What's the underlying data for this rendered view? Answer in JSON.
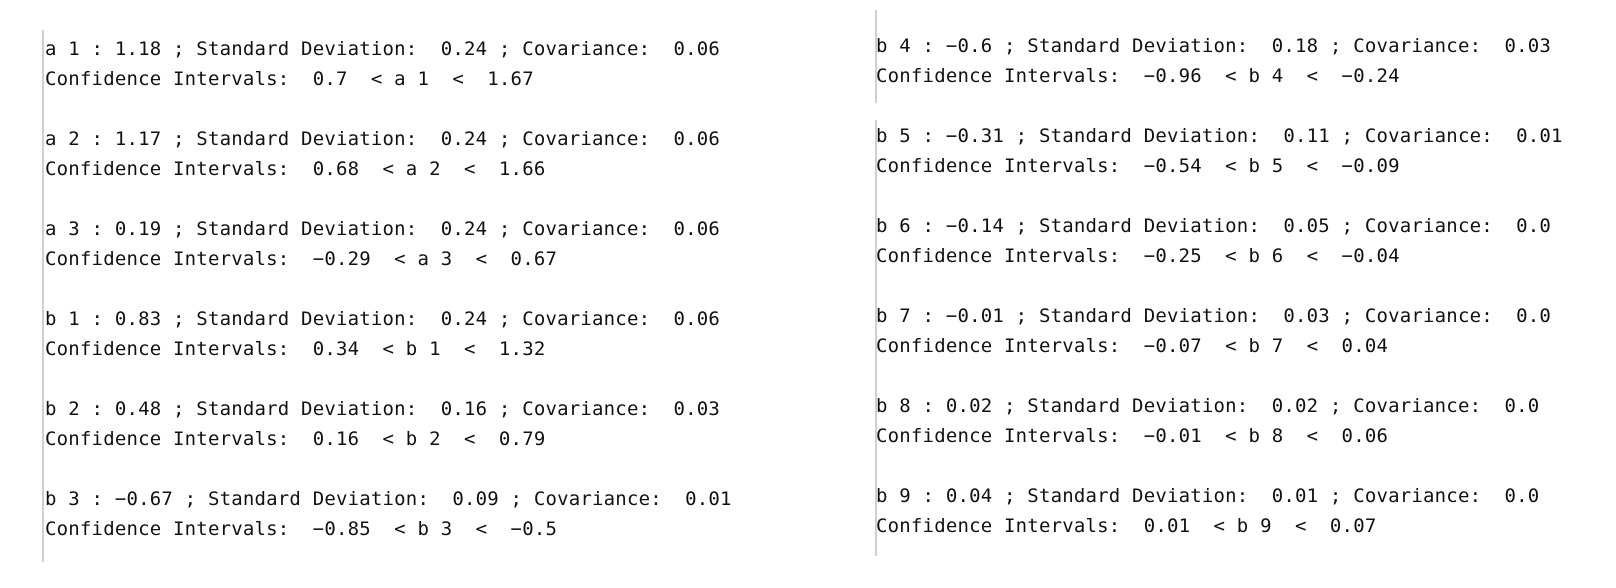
{
  "left_panel": {
    "entries": [
      {
        "line1": "a 1 : 1.18 ; Standard Deviation:  0.24 ; Covariance:  0.06",
        "line2": "Confidence Intervals:  0.7  < a 1  <  1.67"
      },
      {
        "line1": "a 2 : 1.17 ; Standard Deviation:  0.24 ; Covariance:  0.06",
        "line2": "Confidence Intervals:  0.68  < a 2  <  1.66"
      },
      {
        "line1": "a 3 : 0.19 ; Standard Deviation:  0.24 ; Covariance:  0.06",
        "line2": "Confidence Intervals:  −0.29  < a 3  <  0.67"
      },
      {
        "line1": "b 1 : 0.83 ; Standard Deviation:  0.24 ; Covariance:  0.06",
        "line2": "Confidence Intervals:  0.34  < b 1  <  1.32"
      },
      {
        "line1": "b 2 : 0.48 ; Standard Deviation:  0.16 ; Covariance:  0.03",
        "line2": "Confidence Intervals:  0.16  < b 2  <  0.79"
      },
      {
        "line1": "b 3 : −0.67 ; Standard Deviation:  0.09 ; Covariance:  0.01",
        "line2": "Confidence Intervals:  −0.85  < b 3  <  −0.5"
      }
    ]
  },
  "right_panel": {
    "entries": [
      {
        "line1": "b 4 : −0.6 ; Standard Deviation:  0.18 ; Covariance:  0.03",
        "line2": "Confidence Intervals:  −0.96  < b 4  <  −0.24"
      },
      {
        "line1": "b 5 : −0.31 ; Standard Deviation:  0.11 ; Covariance:  0.01",
        "line2": "Confidence Intervals:  −0.54  < b 5  <  −0.09"
      },
      {
        "line1": "b 6 : −0.14 ; Standard Deviation:  0.05 ; Covariance:  0.0",
        "line2": "Confidence Intervals:  −0.25  < b 6  <  −0.04"
      },
      {
        "line1": "b 7 : −0.01 ; Standard Deviation:  0.03 ; Covariance:  0.0",
        "line2": "Confidence Intervals:  −0.07  < b 7  <  0.04"
      },
      {
        "line1": "b 8 : 0.02 ; Standard Deviation:  0.02 ; Covariance:  0.0",
        "line2": "Confidence Intervals:  −0.01  < b 8  <  0.06"
      },
      {
        "line1": "b 9 : 0.04 ; Standard Deviation:  0.01 ; Covariance:  0.0",
        "line2": "Confidence Intervals:  0.01  < b 9  <  0.07"
      }
    ]
  },
  "colors": {
    "text": "#111111",
    "edge": "#cfcfcf",
    "background": "#ffffff"
  }
}
